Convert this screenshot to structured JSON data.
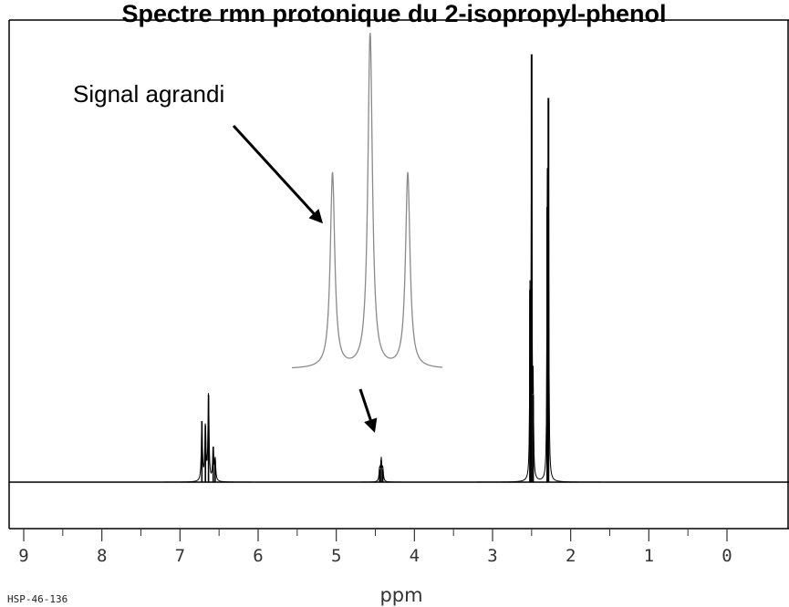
{
  "chart_data": {
    "type": "line",
    "title": "Spectre rmn protonique du 2-isopropyl-phenol",
    "xlabel": "ppm",
    "spectrum_code": "HSP-46-136",
    "x_range": [
      9,
      0
    ],
    "x_reversed": true,
    "xticks_major": [
      9,
      8,
      7,
      6,
      5,
      4,
      3,
      2,
      1,
      0
    ],
    "xticks_minor": [
      8.5,
      7.5,
      6.5,
      5.5,
      4.5,
      3.5,
      2.5,
      1.5,
      0.5
    ],
    "grid": false,
    "baseline": 0,
    "ylim": [
      -0.08,
      1.0
    ],
    "peaks": [
      {
        "ppm": 6.72,
        "height": 0.14,
        "width": 0.008
      },
      {
        "ppm": 6.675,
        "height": 0.13,
        "width": 0.008
      },
      {
        "ppm": 6.635,
        "height": 0.2,
        "width": 0.008
      },
      {
        "ppm": 6.575,
        "height": 0.08,
        "width": 0.008
      },
      {
        "ppm": 6.55,
        "height": 0.05,
        "width": 0.008
      },
      {
        "ppm": 4.445,
        "height": 0.03,
        "width": 0.008
      },
      {
        "ppm": 4.425,
        "height": 0.05,
        "width": 0.008
      },
      {
        "ppm": 4.405,
        "height": 0.03,
        "width": 0.008
      },
      {
        "ppm": 2.52,
        "height": 0.44,
        "width": 0.005
      },
      {
        "ppm": 2.5,
        "height": 0.98,
        "width": 0.005
      },
      {
        "ppm": 2.48,
        "height": 0.2,
        "width": 0.005
      },
      {
        "ppm": 2.3,
        "height": 0.63,
        "width": 0.005
      },
      {
        "ppm": 2.285,
        "height": 0.88,
        "width": 0.005
      }
    ],
    "inset": {
      "label": "Signal agrandi",
      "peaks": [
        {
          "pos": 0.27,
          "height": 0.58
        },
        {
          "pos": 0.52,
          "height": 1.0
        },
        {
          "pos": 0.77,
          "height": 0.58
        }
      ],
      "line_color": "#8a8a8a"
    },
    "colors": {
      "spectrum": "#000000",
      "axis": "#333333"
    }
  }
}
